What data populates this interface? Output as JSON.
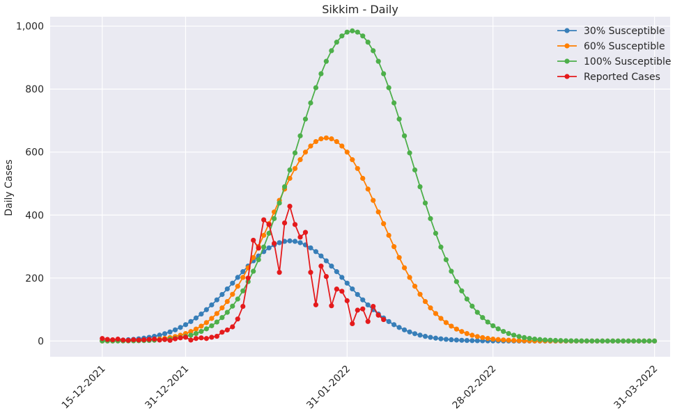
{
  "chart_data": {
    "type": "line",
    "title": "Sikkim - Daily",
    "xlabel": "",
    "ylabel": "Daily Cases",
    "x_start": "2021-12-15",
    "x_end": "2022-03-31",
    "xlim": [
      "2021-12-05",
      "2022-04-03"
    ],
    "ylim": [
      -50,
      1030
    ],
    "yticks": [
      0,
      200,
      400,
      600,
      800,
      1000
    ],
    "ytick_labels": [
      "0",
      "200",
      "400",
      "600",
      "800",
      "1,000"
    ],
    "xticks": [
      "2021-12-15",
      "2021-12-31",
      "2022-01-31",
      "2022-02-28",
      "2022-03-31"
    ],
    "xtick_labels": [
      "15-12-2021",
      "31-12-2021",
      "31-01-2022",
      "28-02-2022",
      "31-03-2022"
    ],
    "grid": true,
    "legend_position": "top-right",
    "background": "#eaeaf2",
    "series": [
      {
        "name": "30% Susceptible",
        "color": "#377eb8",
        "model": "gaussian",
        "peak": 318,
        "peak_date": "2022-01-20",
        "width_days": 10.5
      },
      {
        "name": "60% Susceptible",
        "color": "#ff7f00",
        "model": "gaussian",
        "peak": 645,
        "peak_date": "2022-01-27",
        "width_days": 10.5
      },
      {
        "name": "100% Susceptible",
        "color": "#4daf4a",
        "model": "gaussian",
        "peak": 985,
        "peak_date": "2022-02-01",
        "width_days": 11
      },
      {
        "name": "Reported Cases",
        "color": "#e41a1c",
        "start_date": "2021-12-15",
        "values": [
          8,
          5,
          4,
          6,
          3,
          2,
          4,
          3,
          4,
          5,
          6,
          3,
          5,
          2,
          7,
          10,
          12,
          3,
          8,
          10,
          8,
          12,
          15,
          28,
          35,
          45,
          70,
          110,
          200,
          320,
          295,
          385,
          370,
          310,
          218,
          375,
          428,
          370,
          330,
          345,
          218,
          115,
          238,
          205,
          112,
          165,
          158,
          128,
          55,
          98,
          102,
          62,
          110,
          82,
          68
        ]
      }
    ]
  }
}
